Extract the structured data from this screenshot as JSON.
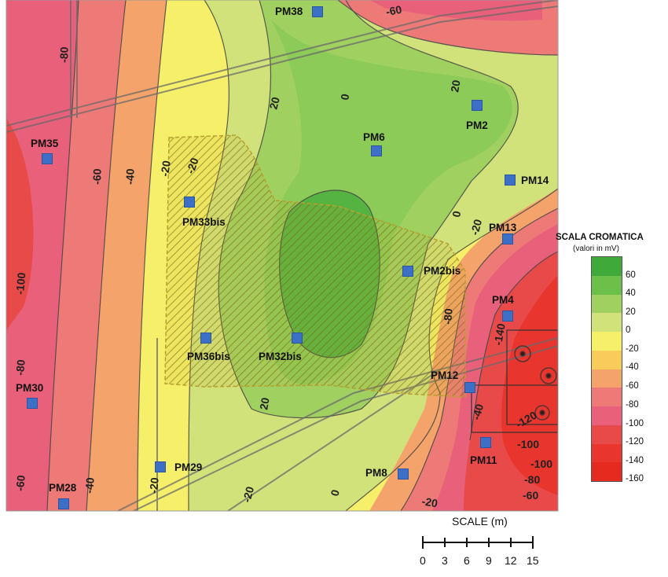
{
  "contour_labels": [
    "-80",
    "-60",
    "-40",
    "-20",
    "20",
    "20",
    "0",
    "0",
    "-20",
    "-100",
    "-80",
    "-60",
    "-40",
    "-20",
    "20",
    "0",
    "-20",
    "-140",
    "-100",
    "-120",
    "-60",
    "-80",
    "-20",
    "-40",
    "-100",
    "-80",
    "-60",
    "-20"
  ],
  "points": [
    {
      "label": "PM38"
    },
    {
      "label": "PM35"
    },
    {
      "label": "PM6"
    },
    {
      "label": "PM2"
    },
    {
      "label": "PM14"
    },
    {
      "label": "PM33bis"
    },
    {
      "label": "PM13"
    },
    {
      "label": "PM2bis"
    },
    {
      "label": "PM4"
    },
    {
      "label": "PM36bis"
    },
    {
      "label": "PM32bis"
    },
    {
      "label": "PM30"
    },
    {
      "label": "PM12"
    },
    {
      "label": "PM11"
    },
    {
      "label": "PM29"
    },
    {
      "label": "PM8"
    },
    {
      "label": "PM28"
    }
  ],
  "legend": {
    "title": "SCALA CROMATICA",
    "subtitle": "(valori in mV)",
    "ticks": [
      "60",
      "40",
      "20",
      "0",
      "-20",
      "-40",
      "-60",
      "-80",
      "-100",
      "-120",
      "-140",
      "-160"
    ],
    "colors": [
      "#3fa93a",
      "#6cc04a",
      "#a0d060",
      "#d2e27a",
      "#f5f06a",
      "#f8cc5a",
      "#f4a36a",
      "#ee7a78",
      "#e8607a",
      "#e84a4a",
      "#e8352e",
      "#e52a1f"
    ]
  },
  "scale": {
    "title": "SCALE (m)",
    "ticks": [
      "0",
      "3",
      "6",
      "9",
      "12",
      "15"
    ]
  },
  "colors": {
    "marker": "#3c6fc6",
    "hatch": "#8a7a2a"
  }
}
